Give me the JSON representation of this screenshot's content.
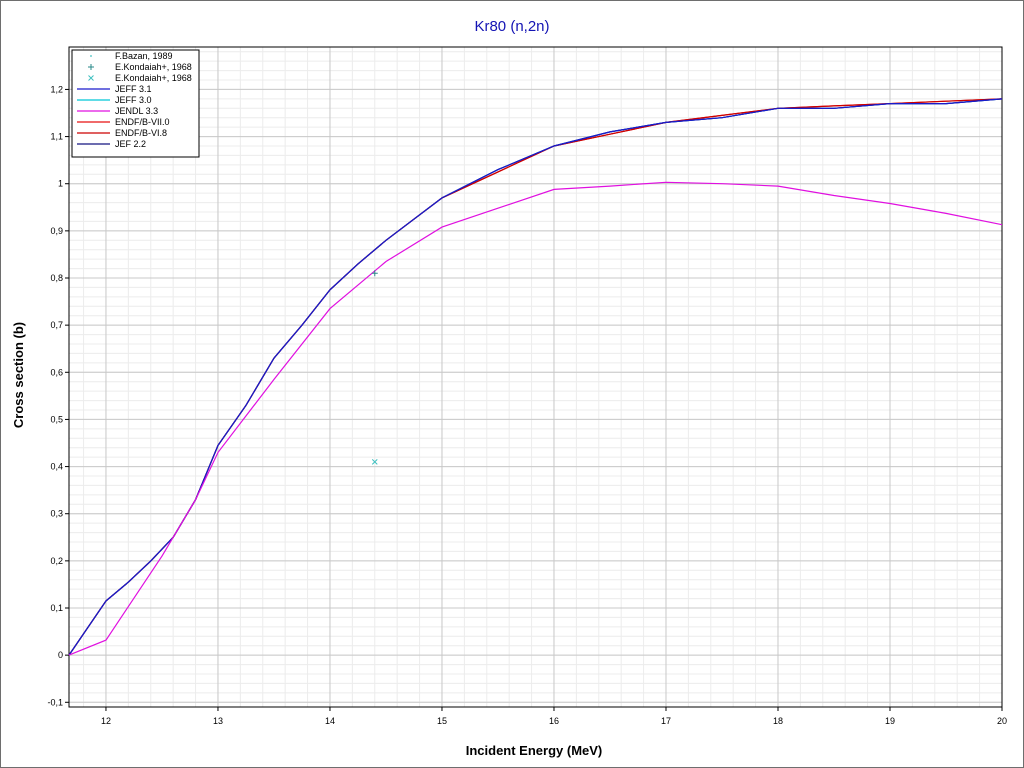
{
  "chart_data": {
    "type": "line",
    "title": "Kr80 (n,2n)",
    "xlabel": "Incident Energy (MeV)",
    "ylabel": "Cross section (b)",
    "xlim": [
      11.67,
      20
    ],
    "ylim": [
      -0.11,
      1.29
    ],
    "x_ticks": [
      12,
      13,
      14,
      15,
      16,
      17,
      18,
      19,
      20
    ],
    "y_ticks": [
      -0.1,
      0,
      0.1,
      0.2,
      0.3,
      0.4,
      0.5,
      0.6,
      0.7,
      0.8,
      0.9,
      1,
      1.1,
      1.2
    ],
    "y_tick_labels": [
      "-0,1",
      "0",
      "0,1",
      "0,2",
      "0,3",
      "0,4",
      "0,5",
      "0,6",
      "0,7",
      "0,8",
      "0,9",
      "1",
      "1,1",
      "1,2"
    ],
    "grid": true,
    "legend_position": "top-left",
    "legend": [
      {
        "name": "F.Bazan, 1989",
        "kind": "marker",
        "symbol": "dot",
        "color": "#40c0c0"
      },
      {
        "name": "E.Kondaiah+, 1968",
        "kind": "marker",
        "symbol": "plus",
        "color": "#2a8a8a"
      },
      {
        "name": "E.Kondaiah+, 1968",
        "kind": "marker",
        "symbol": "cross",
        "color": "#40c0c0"
      },
      {
        "name": "JEFF 3.1",
        "kind": "line",
        "color": "#1a1acc"
      },
      {
        "name": "JEFF 3.0",
        "kind": "line",
        "color": "#00c8d8"
      },
      {
        "name": "JENDL 3.3",
        "kind": "line",
        "color": "#e010e0"
      },
      {
        "name": "ENDF/B-VII.0",
        "kind": "line",
        "color": "#e81010"
      },
      {
        "name": "ENDF/B-VI.8",
        "kind": "line",
        "color": "#cc0000"
      },
      {
        "name": "JEF 2.2",
        "kind": "line",
        "color": "#141480"
      }
    ],
    "scatter": [
      {
        "name": "E.Kondaiah+, 1968",
        "symbol": "plus",
        "color": "#2a8a8a",
        "points": [
          [
            14.4,
            0.81
          ]
        ]
      },
      {
        "name": "E.Kondaiah+, 1968",
        "symbol": "cross",
        "color": "#40c0c0",
        "points": [
          [
            14.4,
            0.41
          ]
        ]
      }
    ],
    "series": [
      {
        "name": "JEFF 3.0",
        "color": "#00c8d8",
        "x": [
          11.67,
          12,
          12.2,
          12.4,
          12.6,
          12.8,
          13,
          13.25,
          13.5,
          13.75,
          14,
          14.25,
          14.5,
          15,
          15.5,
          16,
          16.5,
          17,
          17.5,
          18,
          18.5,
          19,
          19.5,
          20
        ],
        "y": [
          0,
          0.115,
          0.155,
          0.2,
          0.25,
          0.33,
          0.445,
          0.53,
          0.63,
          0.7,
          0.775,
          0.83,
          0.88,
          0.97,
          1.03,
          1.08,
          1.11,
          1.13,
          1.14,
          1.16,
          1.16,
          1.17,
          1.17,
          1.18
        ]
      },
      {
        "name": "ENDF/B-VII.0",
        "color": "#e81010",
        "x": [
          11.67,
          12,
          12.2,
          12.4,
          12.6,
          12.8,
          13,
          13.25,
          13.5,
          13.75,
          14,
          14.25,
          14.5,
          15,
          15.5,
          16,
          16.5,
          17,
          17.5,
          18,
          18.5,
          19,
          19.5,
          20
        ],
        "y": [
          0,
          0.115,
          0.155,
          0.2,
          0.25,
          0.33,
          0.445,
          0.53,
          0.63,
          0.7,
          0.775,
          0.83,
          0.88,
          0.97,
          1.025,
          1.08,
          1.105,
          1.13,
          1.145,
          1.16,
          1.165,
          1.17,
          1.175,
          1.18
        ]
      },
      {
        "name": "ENDF/B-VI.8",
        "color": "#cc0000",
        "x": [
          11.67,
          12,
          12.2,
          12.4,
          12.6,
          12.8,
          13,
          13.25,
          13.5,
          13.75,
          14,
          14.25,
          14.5,
          15,
          15.5,
          16,
          16.5,
          17,
          17.5,
          18,
          18.5,
          19,
          19.5,
          20
        ],
        "y": [
          0,
          0.115,
          0.155,
          0.2,
          0.25,
          0.33,
          0.445,
          0.53,
          0.63,
          0.7,
          0.775,
          0.83,
          0.88,
          0.97,
          1.025,
          1.08,
          1.105,
          1.13,
          1.145,
          1.16,
          1.165,
          1.17,
          1.175,
          1.18
        ]
      },
      {
        "name": "JEF 2.2",
        "color": "#141480",
        "x": [
          11.67,
          12,
          12.2,
          12.4,
          12.6,
          12.8,
          13,
          13.25,
          13.5,
          13.75,
          14,
          14.25,
          14.5,
          15,
          15.5,
          16,
          16.5,
          17,
          17.5,
          18,
          18.5,
          19,
          19.5,
          20
        ],
        "y": [
          0,
          0.115,
          0.155,
          0.2,
          0.25,
          0.33,
          0.445,
          0.53,
          0.63,
          0.7,
          0.775,
          0.83,
          0.88,
          0.97,
          1.03,
          1.08,
          1.11,
          1.13,
          1.14,
          1.16,
          1.16,
          1.17,
          1.17,
          1.18
        ]
      },
      {
        "name": "JEFF 3.1",
        "color": "#1a1acc",
        "x": [
          11.67,
          12,
          12.2,
          12.4,
          12.6,
          12.8,
          13,
          13.25,
          13.5,
          13.75,
          14,
          14.25,
          14.5,
          15,
          15.5,
          16,
          16.5,
          17,
          17.5,
          18,
          18.5,
          19,
          19.5,
          20
        ],
        "y": [
          0,
          0.115,
          0.155,
          0.2,
          0.25,
          0.33,
          0.445,
          0.53,
          0.63,
          0.7,
          0.775,
          0.83,
          0.88,
          0.97,
          1.03,
          1.08,
          1.11,
          1.13,
          1.14,
          1.16,
          1.16,
          1.17,
          1.17,
          1.18
        ]
      },
      {
        "name": "JENDL 3.3",
        "color": "#e010e0",
        "x": [
          11.67,
          12,
          12.5,
          12.8,
          13,
          13.5,
          14,
          14.5,
          15,
          15.5,
          16,
          16.5,
          17,
          17.5,
          18,
          18.5,
          19,
          19.5,
          20
        ],
        "y": [
          0,
          0.032,
          0.21,
          0.33,
          0.43,
          0.585,
          0.735,
          0.835,
          0.908,
          0.948,
          0.988,
          0.995,
          1.003,
          1.0,
          0.995,
          0.975,
          0.958,
          0.937,
          0.913
        ]
      }
    ]
  }
}
